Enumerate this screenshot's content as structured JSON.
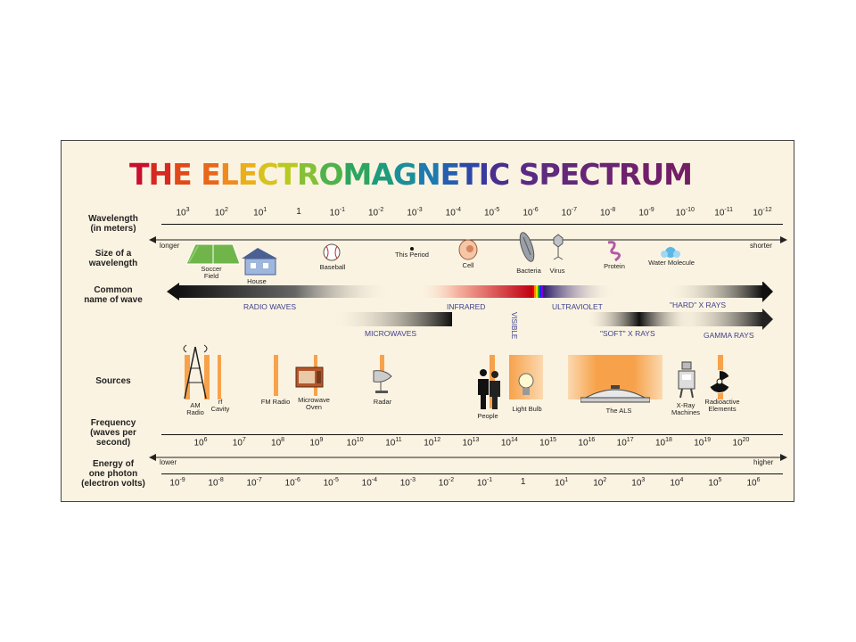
{
  "title": "THE ELECTROMAGNETIC SPECTRUM",
  "title_colors": [
    "#c8102e",
    "#d42a1f",
    "#e04a1a",
    "#e8671a",
    "#f08a1c",
    "#e9b01c",
    "#d7c21f",
    "#b8c91f",
    "#86c036",
    "#4fb24a",
    "#2ea55e",
    "#1c9c7c",
    "#1a8f9a",
    "#1e7ab0",
    "#255fb0",
    "#2d49a6",
    "#3a3a9e",
    "#4a2f8f",
    "#5a2a85",
    "#5f2a7f",
    "#63287a",
    "#662676",
    "#6a2472",
    "#6d226d",
    "#70206a",
    "#721f66",
    "#741e63",
    "#761d60"
  ],
  "rows": {
    "wavelength": "Wavelength\n(in meters)",
    "size": "Size of a\nwavelength",
    "common_name": "Common\nname of wave",
    "sources": "Sources",
    "frequency": "Frequency\n(waves per\nsecond)",
    "energy": "Energy of\none photon\n(electron volts)"
  },
  "wavelength_ticks": [
    {
      "base": "10",
      "exp": "3"
    },
    {
      "base": "10",
      "exp": "2"
    },
    {
      "base": "10",
      "exp": "1"
    },
    {
      "base": "1",
      "exp": ""
    },
    {
      "base": "10",
      "exp": "-1"
    },
    {
      "base": "10",
      "exp": "-2"
    },
    {
      "base": "10",
      "exp": "-3"
    },
    {
      "base": "10",
      "exp": "-4"
    },
    {
      "base": "10",
      "exp": "-5"
    },
    {
      "base": "10",
      "exp": "-6"
    },
    {
      "base": "10",
      "exp": "-7"
    },
    {
      "base": "10",
      "exp": "-8"
    },
    {
      "base": "10",
      "exp": "-9"
    },
    {
      "base": "10",
      "exp": "-10"
    },
    {
      "base": "10",
      "exp": "-11"
    },
    {
      "base": "10",
      "exp": "-12"
    }
  ],
  "longer": "longer",
  "shorter": "shorter",
  "sizes": [
    {
      "label": "Soccer\nField",
      "icon": "soccer-field-icon"
    },
    {
      "label": "House",
      "icon": "house-icon"
    },
    {
      "label": "Baseball",
      "icon": "baseball-icon"
    },
    {
      "label": "This Period",
      "icon": "period-dot-icon"
    },
    {
      "label": "Cell",
      "icon": "cell-icon"
    },
    {
      "label": "Bacteria",
      "icon": "bacteria-icon"
    },
    {
      "label": "Virus",
      "icon": "virus-icon"
    },
    {
      "label": "Protein",
      "icon": "protein-icon"
    },
    {
      "label": "Water Molecule",
      "icon": "water-molecule-icon"
    }
  ],
  "bands": {
    "radio": "RADIO WAVES",
    "microwaves": "MICROWAVES",
    "infrared": "INFRARED",
    "visible": "VISIBLE",
    "ultraviolet": "ULTRAVIOLET",
    "hard_xrays": "\"HARD\" X RAYS",
    "soft_xrays": "\"SOFT\" X RAYS",
    "gamma": "GAMMA RAYS"
  },
  "sources": [
    {
      "label": "AM\nRadio",
      "icon": "radio-tower-icon"
    },
    {
      "label": "rf\nCavity",
      "icon": "rf-cavity-icon"
    },
    {
      "label": "FM Radio",
      "icon": "fm-radio-icon"
    },
    {
      "label": "Microwave\nOven",
      "icon": "microwave-oven-icon"
    },
    {
      "label": "Radar",
      "icon": "radar-dish-icon"
    },
    {
      "label": "People",
      "icon": "people-icon"
    },
    {
      "label": "Light Bulb",
      "icon": "light-bulb-icon"
    },
    {
      "label": "The ALS",
      "icon": "als-building-icon"
    },
    {
      "label": "X-Ray\nMachines",
      "icon": "xray-machine-icon"
    },
    {
      "label": "Radioactive\nElements",
      "icon": "radiation-icon"
    }
  ],
  "frequency_ticks": [
    {
      "base": "10",
      "exp": "6"
    },
    {
      "base": "10",
      "exp": "7"
    },
    {
      "base": "10",
      "exp": "8"
    },
    {
      "base": "10",
      "exp": "9"
    },
    {
      "base": "10",
      "exp": "10"
    },
    {
      "base": "10",
      "exp": "11"
    },
    {
      "base": "10",
      "exp": "12"
    },
    {
      "base": "10",
      "exp": "13"
    },
    {
      "base": "10",
      "exp": "14"
    },
    {
      "base": "10",
      "exp": "15"
    },
    {
      "base": "10",
      "exp": "16"
    },
    {
      "base": "10",
      "exp": "17"
    },
    {
      "base": "10",
      "exp": "18"
    },
    {
      "base": "10",
      "exp": "19"
    },
    {
      "base": "10",
      "exp": "20"
    }
  ],
  "lower": "lower",
  "higher": "higher",
  "energy_ticks": [
    {
      "base": "10",
      "exp": "-9"
    },
    {
      "base": "10",
      "exp": "-8"
    },
    {
      "base": "10",
      "exp": "-7"
    },
    {
      "base": "10",
      "exp": "-6"
    },
    {
      "base": "10",
      "exp": "-5"
    },
    {
      "base": "10",
      "exp": "-4"
    },
    {
      "base": "10",
      "exp": "-3"
    },
    {
      "base": "10",
      "exp": "-2"
    },
    {
      "base": "10",
      "exp": "-1"
    },
    {
      "base": "1",
      "exp": ""
    },
    {
      "base": "10",
      "exp": "1"
    },
    {
      "base": "10",
      "exp": "2"
    },
    {
      "base": "10",
      "exp": "3"
    },
    {
      "base": "10",
      "exp": "4"
    },
    {
      "base": "10",
      "exp": "5"
    },
    {
      "base": "10",
      "exp": "6"
    }
  ],
  "colors": {
    "background": "#fbf3e1",
    "orange": "#f7a24b",
    "band_label": "#3b3f8f"
  }
}
